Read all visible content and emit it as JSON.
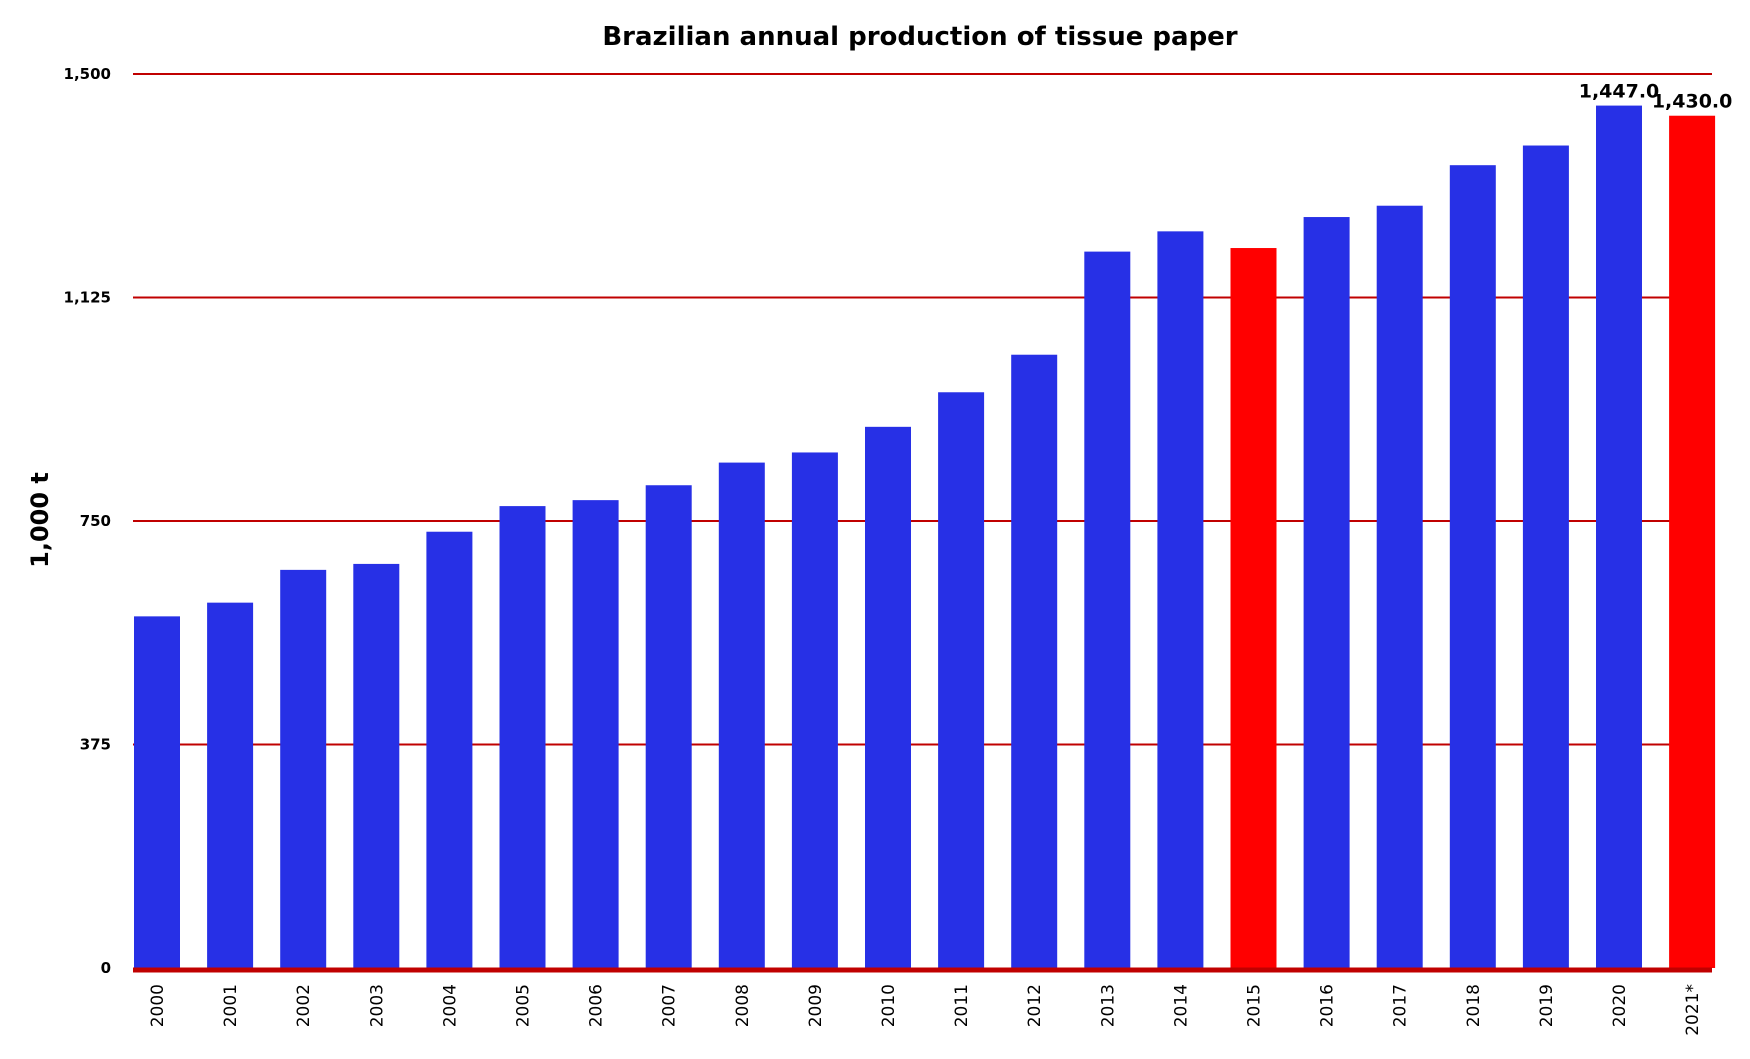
{
  "chart_data": {
    "type": "bar",
    "title": "Brazilian annual production of tissue paper",
    "xlabel": "",
    "ylabel": "1,000 t",
    "ylim": [
      0,
      1500
    ],
    "yticks": [
      0,
      375,
      750,
      1125,
      1500
    ],
    "ytick_labels": [
      "0",
      "375",
      "750",
      "1,125",
      "1,500"
    ],
    "grid": true,
    "legend": "none",
    "categories": [
      "2000",
      "2001",
      "2002",
      "2003",
      "2004",
      "2005",
      "2006",
      "2007",
      "2008",
      "2009",
      "2010",
      "2011",
      "2012",
      "2013",
      "2014",
      "2015",
      "2016",
      "2017",
      "2018",
      "2019",
      "2020",
      "2021*"
    ],
    "values": [
      590,
      613,
      668,
      678,
      732,
      775,
      785,
      810,
      848,
      865,
      908,
      966,
      1029,
      1202,
      1236,
      1208,
      1260,
      1279,
      1347,
      1380,
      1447,
      1430
    ],
    "data_labels": [
      {
        "category": "2020",
        "text": "1,447.0"
      },
      {
        "category": "2021*",
        "text": "1,430.0"
      }
    ],
    "highlight_categories": [
      "2015",
      "2021*"
    ],
    "colors": {
      "bar": "#2730e6",
      "highlight": "#ff0000",
      "grid": "#c00000",
      "axis": "#c00000"
    }
  }
}
